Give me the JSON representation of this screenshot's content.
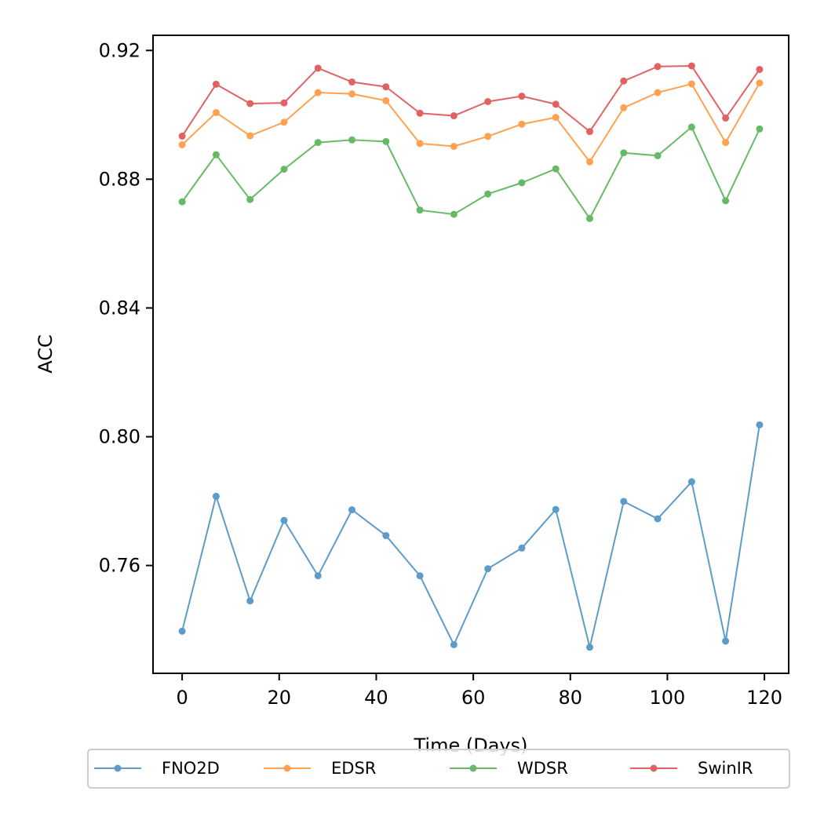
{
  "chart_data": {
    "type": "line",
    "title": "",
    "xlabel": "Time (Days)",
    "ylabel": "ACC",
    "x": [
      0,
      7,
      14,
      21,
      28,
      35,
      42,
      49,
      56,
      63,
      70,
      77,
      84,
      91,
      98,
      105,
      112,
      119
    ],
    "xlim": [
      -6,
      125
    ],
    "ylim": [
      0.7265,
      0.9247
    ],
    "xticks": [
      0,
      20,
      40,
      60,
      80,
      100,
      120
    ],
    "yticks": [
      0.76,
      0.8,
      0.84,
      0.88,
      0.92
    ],
    "ytick_labels": [
      "0.76",
      "0.80",
      "0.84",
      "0.88",
      "0.92"
    ],
    "grid": false,
    "legend_position": "bottom-center",
    "series": [
      {
        "name": "FNO2D",
        "color": "#1f77b4",
        "values": [
          0.7396,
          0.7815,
          0.749,
          0.774,
          0.7568,
          0.7773,
          0.7693,
          0.7568,
          0.7354,
          0.759,
          0.7654,
          0.7774,
          0.7346,
          0.7799,
          0.7745,
          0.786,
          0.7365,
          0.8037
        ]
      },
      {
        "name": "EDSR",
        "color": "#ff7f0e",
        "values": [
          0.8907,
          0.9007,
          0.8935,
          0.8977,
          0.9069,
          0.9065,
          0.9044,
          0.8911,
          0.8902,
          0.8933,
          0.8971,
          0.8992,
          0.8854,
          0.9022,
          0.9069,
          0.9096,
          0.8914,
          0.9099
        ]
      },
      {
        "name": "WDSR",
        "color": "#2ca02c",
        "values": [
          0.873,
          0.8876,
          0.8737,
          0.8831,
          0.8914,
          0.8922,
          0.8917,
          0.8704,
          0.8691,
          0.8754,
          0.8789,
          0.8832,
          0.8678,
          0.8882,
          0.8873,
          0.8962,
          0.8733,
          0.8956
        ]
      },
      {
        "name": "SwinIR",
        "color": "#d62728",
        "values": [
          0.8934,
          0.9095,
          0.9035,
          0.9037,
          0.9145,
          0.9102,
          0.9087,
          0.9005,
          0.8997,
          0.9041,
          0.9058,
          0.9033,
          0.8948,
          0.9105,
          0.915,
          0.9152,
          0.899,
          0.9141
        ]
      }
    ]
  }
}
